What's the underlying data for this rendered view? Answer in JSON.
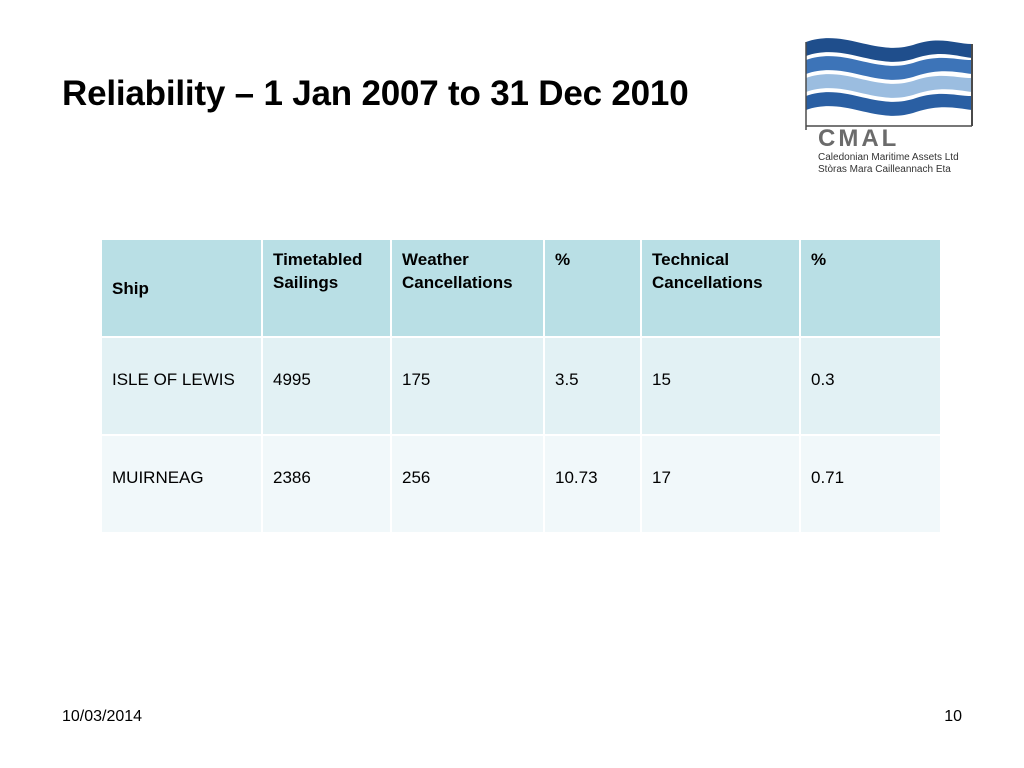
{
  "slide": {
    "title": "Reliability – 1 Jan 2007 to 31 Dec 2010"
  },
  "logo": {
    "name": "CMAL",
    "line1": "Caledonian Maritime Assets Ltd",
    "line2": "Stòras Mara Cailleannach Eta",
    "colors": {
      "wave_dark": "#1f4e8c",
      "wave_mid": "#3d74b8",
      "wave_light": "#9bbde0",
      "text": "#6b6b6b"
    }
  },
  "table": {
    "headers": [
      "Ship",
      "Timetabled Sailings",
      "Weather Cancellations",
      "%",
      "Technical Cancellations",
      "%"
    ],
    "rows": [
      [
        "ISLE OF LEWIS",
        "4995",
        "175",
        "3.5",
        "15",
        "0.3"
      ],
      [
        "MUIRNEAG",
        "2386",
        "256",
        "10.73",
        "17",
        "0.71"
      ]
    ],
    "colors": {
      "header_bg": "#b9dfe5",
      "row1_bg": "#e2f1f4",
      "row2_bg": "#f1f8fa"
    }
  },
  "footer": {
    "date": "10/03/2014",
    "page": "10"
  }
}
